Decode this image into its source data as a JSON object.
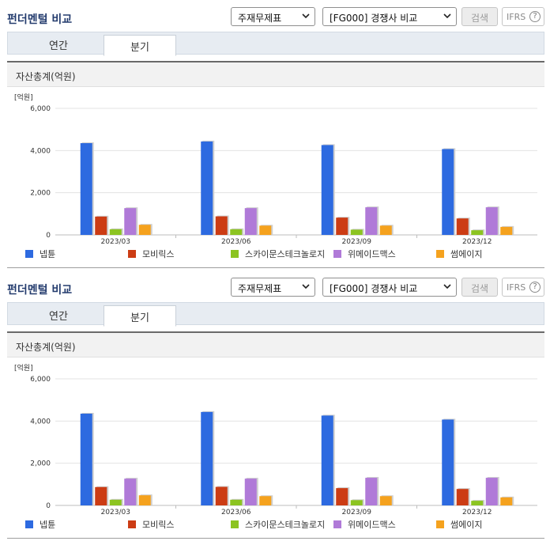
{
  "header": {
    "title": "펀더멘털 비교",
    "statement_select": "주재무제표",
    "compare_select": "[FG000] 경쟁사 비교",
    "search_label": "검색",
    "ifrs_label": "IFRS",
    "help_glyph": "?"
  },
  "tabs": [
    {
      "label": "연간",
      "active": false
    },
    {
      "label": "분기",
      "active": true
    }
  ],
  "panel": {
    "subtitle": "자산총계(억원)"
  },
  "chart_data": {
    "type": "bar",
    "unit_label": "[억원]",
    "categories": [
      "2023/03",
      "2023/06",
      "2023/09",
      "2023/12"
    ],
    "ylim": [
      0,
      6000
    ],
    "yticks": [
      "0",
      "2,000",
      "4,000",
      "6,000"
    ],
    "grid": true,
    "legend_position": "bottom",
    "series": [
      {
        "name": "넵튠",
        "color": "#2d6ae0",
        "values": [
          4350,
          4430,
          4260,
          4070
        ]
      },
      {
        "name": "모비릭스",
        "color": "#cc3c14",
        "values": [
          870,
          880,
          820,
          780
        ]
      },
      {
        "name": "스카이문스테크놀로지",
        "color": "#8cc421",
        "values": [
          270,
          270,
          250,
          220
        ]
      },
      {
        "name": "위메이드맥스",
        "color": "#b07ad8",
        "values": [
          1270,
          1270,
          1310,
          1310
        ]
      },
      {
        "name": "썸에이지",
        "color": "#f5a21e",
        "values": [
          480,
          440,
          440,
          380
        ]
      }
    ]
  }
}
